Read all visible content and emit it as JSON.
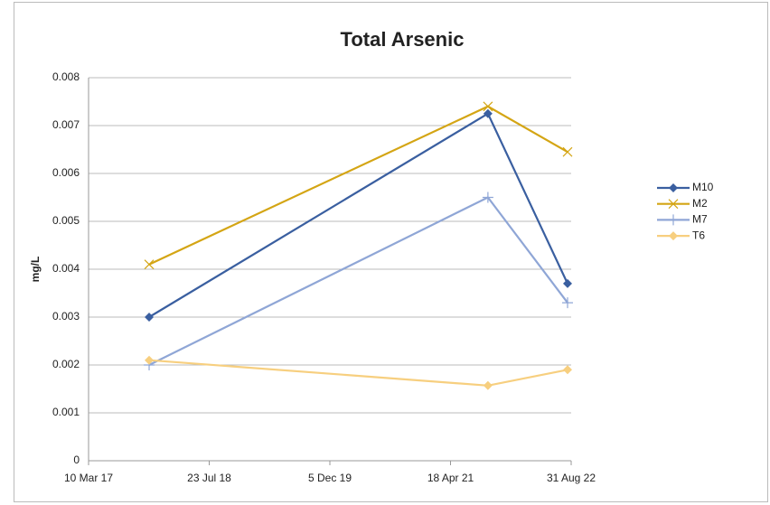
{
  "chart_data": {
    "type": "line",
    "title": "Total Arsenic",
    "y_label": "mg/L",
    "x": [
      "2017-11-16",
      "2021-09-20",
      "2022-08-16"
    ],
    "series": [
      {
        "name": "M10",
        "color": "#3a5fa0",
        "marker": "diamond",
        "values": [
          0.003,
          0.00725,
          0.0037
        ]
      },
      {
        "name": "M2",
        "color": "#d4a514",
        "marker": "x",
        "values": [
          0.0041,
          0.0074,
          0.00645
        ]
      },
      {
        "name": "M7",
        "color": "#8fa6d6",
        "marker": "plus",
        "values": [
          0.002,
          0.0055,
          0.0033
        ]
      },
      {
        "name": "T6",
        "color": "#f7cf7f",
        "marker": "diamond",
        "values": [
          0.0021,
          0.00157,
          0.0019
        ]
      }
    ],
    "xlim": [
      "2017-03-10",
      "2022-08-31"
    ],
    "xticks": [
      {
        "value": "2017-03-10",
        "label": "10 Mar 17"
      },
      {
        "value": "2018-07-23",
        "label": "23 Jul 18"
      },
      {
        "value": "2019-12-05",
        "label": "5 Dec 19"
      },
      {
        "value": "2021-04-18",
        "label": "18 Apr 21"
      },
      {
        "value": "2022-08-31",
        "label": "31 Aug 22"
      }
    ],
    "ylim": [
      0,
      0.008
    ],
    "yticks": [
      0,
      0.001,
      0.002,
      0.003,
      0.004,
      0.005,
      0.006,
      0.007,
      0.008
    ],
    "grid": true,
    "legend": "right"
  }
}
